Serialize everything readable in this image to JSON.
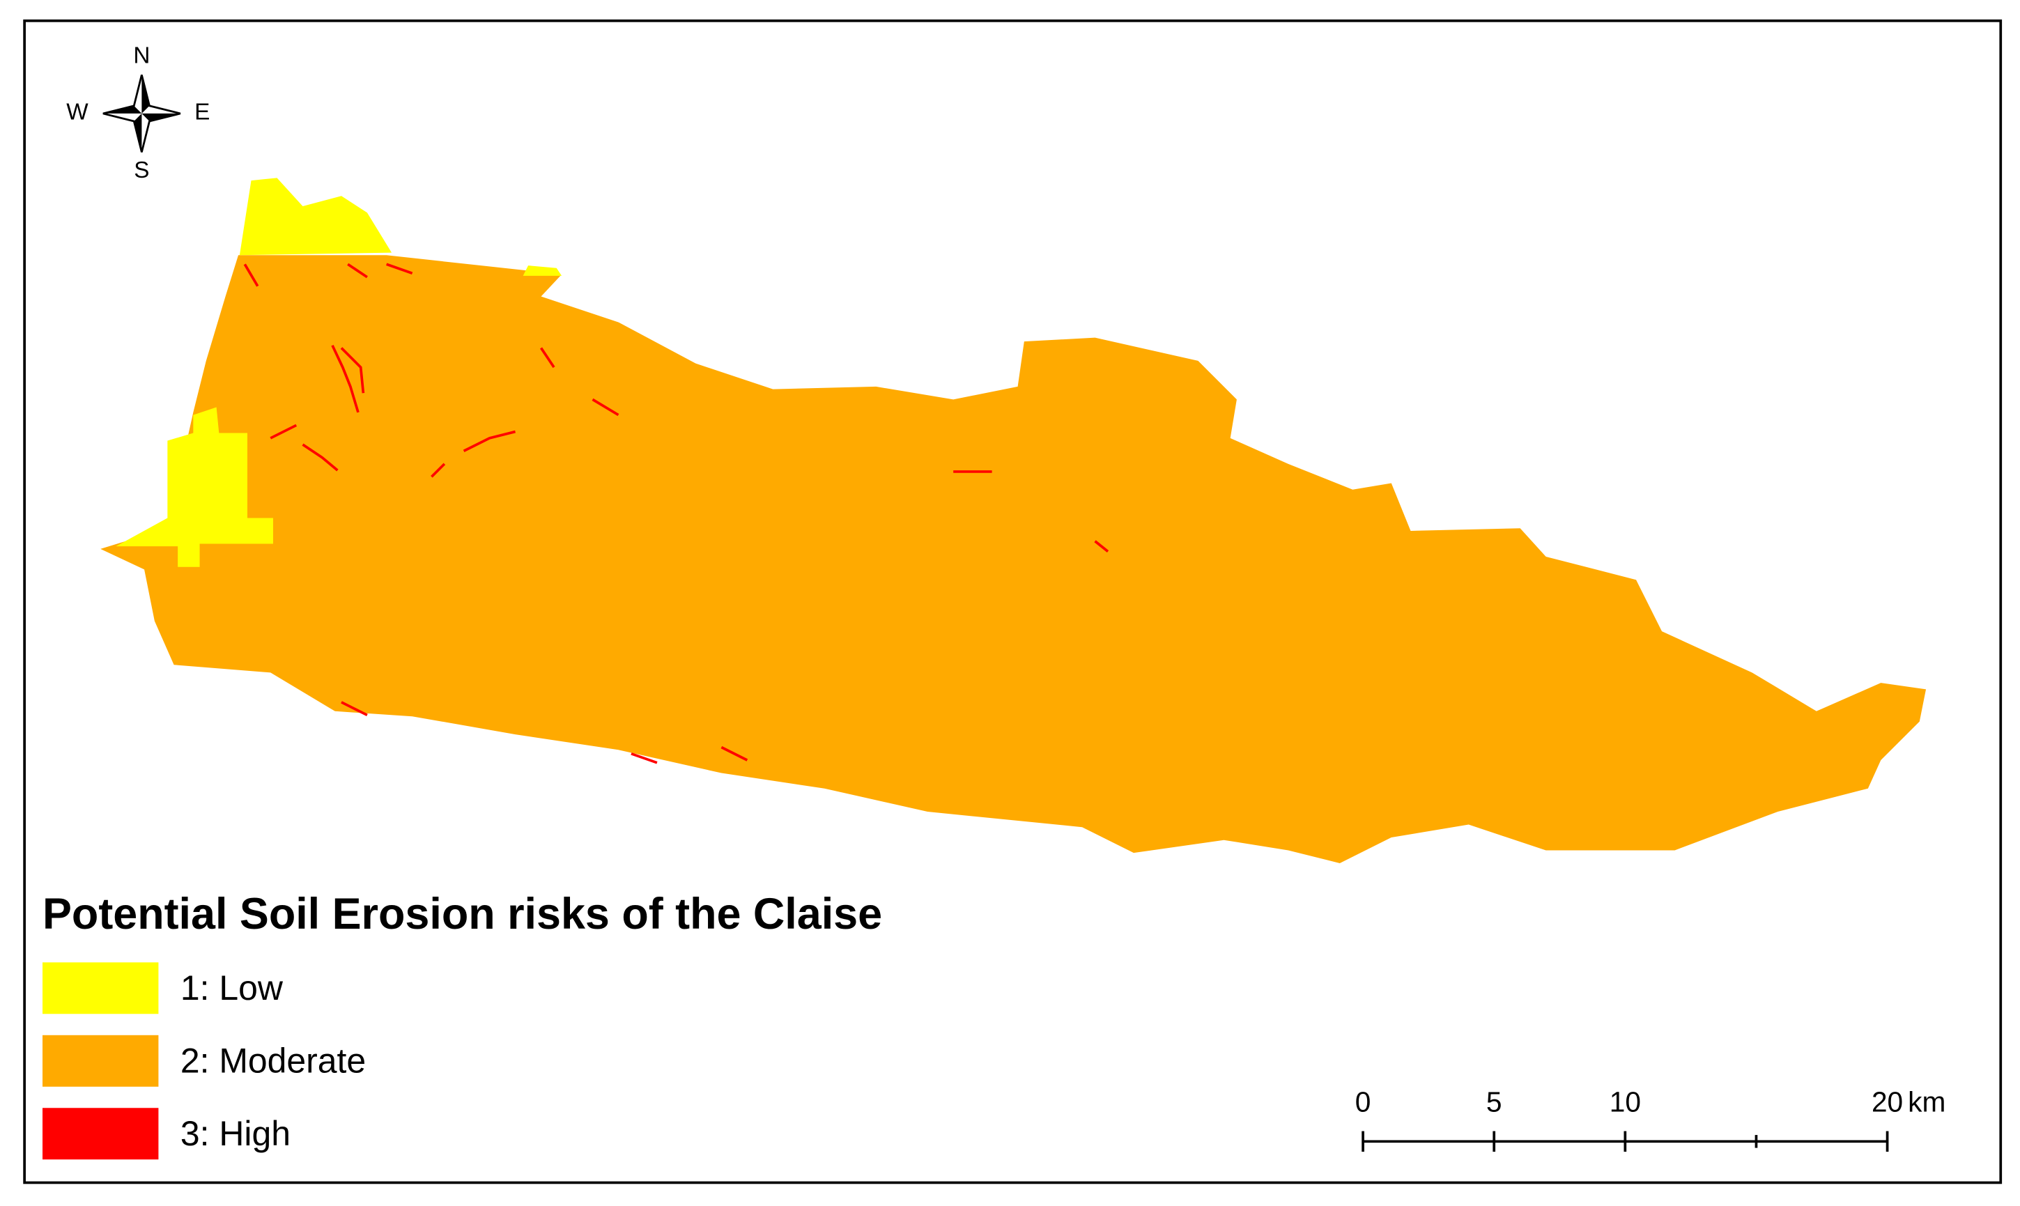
{
  "title": "Potential Soil Erosion risks of the Claise",
  "legend": [
    {
      "label": "1: Low",
      "color": "#ffff00"
    },
    {
      "label": "2: Moderate",
      "color": "#ffaa00"
    },
    {
      "label": "3: High",
      "color": "#ff0000"
    }
  ],
  "compass": {
    "n": "N",
    "e": "E",
    "s": "S",
    "w": "W"
  },
  "scale_bar": {
    "range": [
      0,
      20
    ],
    "ticks": [
      0,
      5,
      10,
      20
    ],
    "minor_ticks": [
      15
    ],
    "unit": "km"
  }
}
